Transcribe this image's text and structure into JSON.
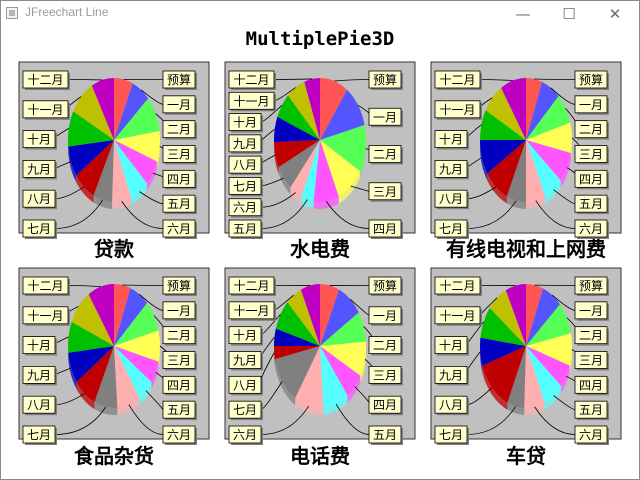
{
  "window": {
    "title": "JFreechart Line",
    "controls": {
      "minimize": "—",
      "maximize": "☐",
      "close": "✕"
    }
  },
  "chart_data": {
    "type": "pie",
    "title": "MultiplePie3D",
    "categories": [
      "预算",
      "一月",
      "二月",
      "三月",
      "四月",
      "五月",
      "六月",
      "七月",
      "八月",
      "九月",
      "十月",
      "十一月",
      "十二月"
    ],
    "colors": [
      "#ff5555",
      "#5555ff",
      "#55ff55",
      "#ffff55",
      "#ff55ff",
      "#55ffff",
      "#ffafaf",
      "#808080",
      "#c00000",
      "#0000c0",
      "#00c000",
      "#c0c000",
      "#c000c0"
    ],
    "plot_background": "#c0c0c0",
    "label_background": "#ffffcc",
    "pies": [
      {
        "name": "贷款",
        "values": [
          5,
          5,
          7,
          6,
          5,
          5,
          5,
          5,
          6,
          6,
          7,
          7,
          6
        ]
      },
      {
        "name": "水电费",
        "values": [
          9,
          10,
          11,
          9,
          8,
          4,
          4,
          6,
          6,
          6,
          6,
          6,
          5
        ]
      },
      {
        "name": "有线电视和上网费",
        "values": [
          5,
          6,
          7,
          7,
          7,
          6,
          6,
          6,
          8,
          8,
          7,
          7,
          8
        ]
      },
      {
        "name": "食品杂货",
        "values": [
          5,
          6,
          7,
          7,
          5,
          5,
          7,
          7,
          7,
          7,
          7,
          8,
          8
        ]
      },
      {
        "name": "电话费",
        "values": [
          6,
          8,
          7,
          8,
          6,
          8,
          9,
          11,
          3,
          4,
          7,
          5,
          6
        ]
      },
      {
        "name": "车贷",
        "values": [
          5,
          6,
          7,
          7,
          5,
          6,
          6,
          5,
          11,
          6,
          7,
          6,
          6
        ]
      }
    ]
  }
}
